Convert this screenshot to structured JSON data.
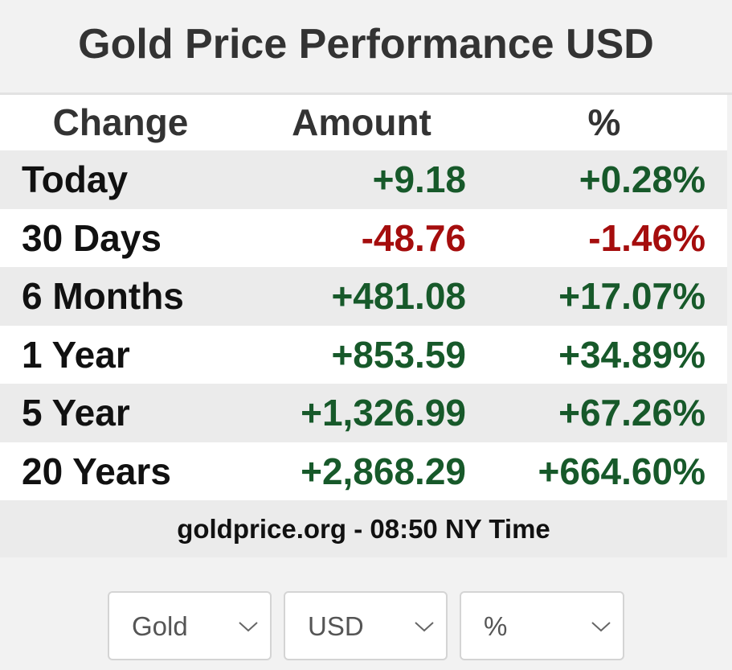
{
  "header": {
    "title": "Gold Price Performance USD"
  },
  "table": {
    "columns": [
      "Change",
      "Amount",
      "%"
    ],
    "rows": [
      {
        "label": "Today",
        "amount": "+9.18",
        "percent": "+0.28%",
        "color": "#17592a"
      },
      {
        "label": "30 Days",
        "amount": "-48.76",
        "percent": "-1.46%",
        "color": "#a50d0d"
      },
      {
        "label": "6 Months",
        "amount": "+481.08",
        "percent": "+17.07%",
        "color": "#17592a"
      },
      {
        "label": "1 Year",
        "amount": "+853.59",
        "percent": "+34.89%",
        "color": "#17592a"
      },
      {
        "label": "5 Year",
        "amount": "+1,326.99",
        "percent": "+67.26%",
        "color": "#17592a"
      },
      {
        "label": "20 Years",
        "amount": "+2,868.29",
        "percent": "+664.60%",
        "color": "#17592a"
      }
    ],
    "footer": "goldprice.org - 08:50 NY Time"
  },
  "selects": [
    "Gold",
    "USD",
    "%"
  ]
}
